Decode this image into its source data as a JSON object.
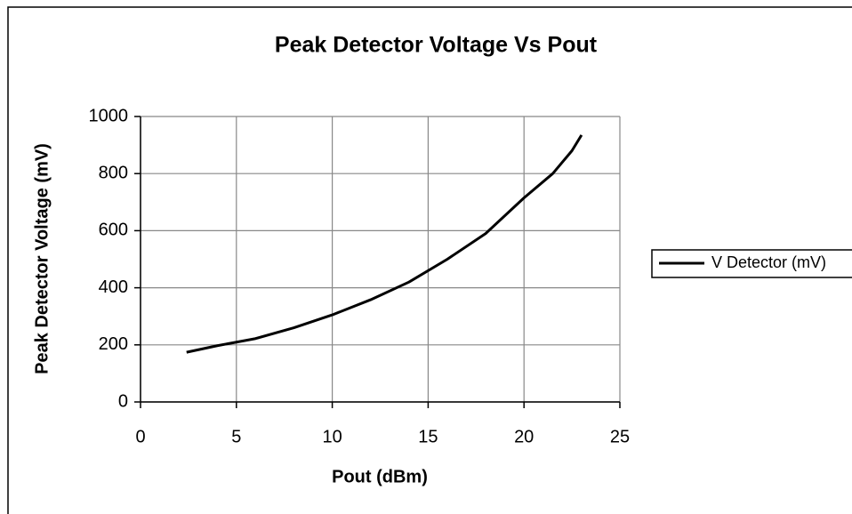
{
  "chart_data": {
    "type": "line",
    "title": "Peak Detector Voltage Vs Pout",
    "xlabel": "Pout (dBm)",
    "ylabel": "Peak Detector Voltage (mV)",
    "x": [
      2.4,
      4,
      6,
      8,
      10,
      12,
      14,
      16,
      18,
      20,
      21.5,
      22.5,
      23
    ],
    "series": [
      {
        "name": "V Detector (mV)",
        "color": "#000000",
        "values": [
          174,
          197,
          222,
          260,
          305,
          358,
          420,
          500,
          590,
          715,
          800,
          880,
          935
        ]
      }
    ],
    "xlim": [
      0,
      25
    ],
    "xticks": [
      0,
      5,
      10,
      15,
      20,
      25
    ],
    "ylim": [
      0,
      1000
    ],
    "yticks": [
      0,
      200,
      400,
      600,
      800,
      1000
    ],
    "grid": true,
    "legend": "right"
  }
}
